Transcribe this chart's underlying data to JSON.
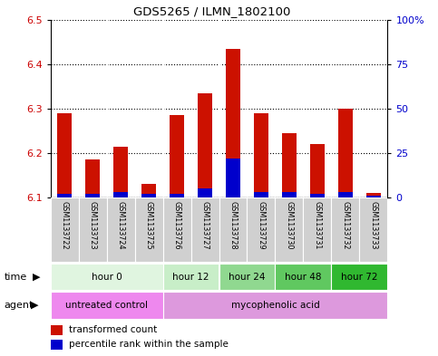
{
  "title": "GDS5265 / ILMN_1802100",
  "samples": [
    "GSM1133722",
    "GSM1133723",
    "GSM1133724",
    "GSM1133725",
    "GSM1133726",
    "GSM1133727",
    "GSM1133728",
    "GSM1133729",
    "GSM1133730",
    "GSM1133731",
    "GSM1133732",
    "GSM1133733"
  ],
  "transformed_count": [
    6.29,
    6.185,
    6.215,
    6.13,
    6.285,
    6.335,
    6.435,
    6.29,
    6.245,
    6.22,
    6.3,
    6.11
  ],
  "percentile_rank": [
    2,
    2,
    3,
    2,
    2,
    5,
    22,
    3,
    3,
    2,
    3,
    1
  ],
  "ylim_left": [
    6.1,
    6.5
  ],
  "ylim_right": [
    0,
    100
  ],
  "yticks_left": [
    6.1,
    6.2,
    6.3,
    6.4,
    6.5
  ],
  "yticks_right": [
    0,
    25,
    50,
    75,
    100
  ],
  "ytick_labels_right": [
    "0",
    "25",
    "50",
    "75",
    "100%"
  ],
  "bar_bottom": 6.1,
  "time_groups": [
    {
      "label": "hour 0",
      "indices": [
        0,
        1,
        2,
        3
      ],
      "color": "#e0f5e0"
    },
    {
      "label": "hour 12",
      "indices": [
        4,
        5
      ],
      "color": "#c8eec8"
    },
    {
      "label": "hour 24",
      "indices": [
        6,
        7
      ],
      "color": "#90d890"
    },
    {
      "label": "hour 48",
      "indices": [
        8,
        9
      ],
      "color": "#60c860"
    },
    {
      "label": "hour 72",
      "indices": [
        10,
        11
      ],
      "color": "#30b830"
    }
  ],
  "agent_groups": [
    {
      "label": "untreated control",
      "indices": [
        0,
        1,
        2,
        3
      ],
      "color": "#ee88ee"
    },
    {
      "label": "mycophenolic acid",
      "indices": [
        4,
        5,
        6,
        7,
        8,
        9,
        10,
        11
      ],
      "color": "#dd99dd"
    }
  ],
  "bar_color_red": "#cc1100",
  "bar_color_blue": "#0000cc",
  "bg_color": "#ffffff",
  "plot_bg": "#ffffff",
  "left_label_color": "#cc0000",
  "right_label_color": "#0000cc",
  "sample_box_color": "#d0d0d0",
  "grid_linestyle": ":",
  "grid_linewidth": 0.8,
  "grid_color": "#000000"
}
